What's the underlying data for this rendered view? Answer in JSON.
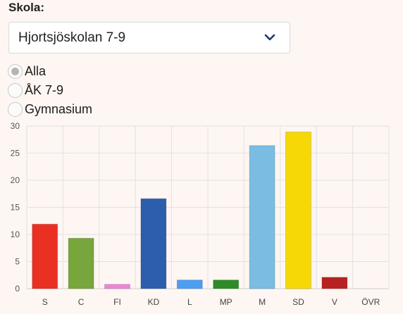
{
  "school": {
    "label": "Skola:",
    "selected": "Hjortsjöskolan 7-9"
  },
  "filter": {
    "options": [
      {
        "label": "Alla",
        "checked": true
      },
      {
        "label": "ÅK 7-9",
        "checked": false
      },
      {
        "label": "Gymnasium",
        "checked": false
      }
    ]
  },
  "colors": {
    "bars": [
      "#ea3023",
      "#76a63c",
      "#ee86d7",
      "#2b5ead",
      "#4c9ef1",
      "#2f8b28",
      "#7bbde2",
      "#f6d807",
      "#b92120",
      "#aaaaaa"
    ]
  },
  "chart_data": {
    "type": "bar",
    "categories": [
      "S",
      "C",
      "FI",
      "KD",
      "L",
      "MP",
      "M",
      "SD",
      "V",
      "ÖVR"
    ],
    "values": [
      11.9,
      9.3,
      0.8,
      16.6,
      1.6,
      1.6,
      26.4,
      28.9,
      2.1,
      0
    ],
    "ylim": [
      0,
      30
    ],
    "yticks": [
      0,
      5,
      10,
      15,
      20,
      25,
      30
    ],
    "grid": true
  }
}
